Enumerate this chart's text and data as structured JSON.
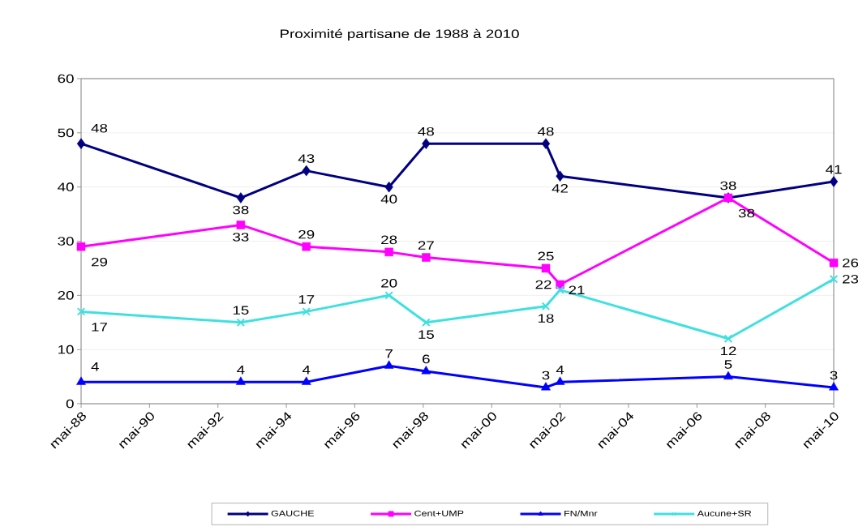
{
  "chart_data": {
    "type": "line",
    "title": "Proximité partisane de 1988 à 2010",
    "x": [
      "1988-05",
      "1993-01",
      "1994-12",
      "1997-05",
      "1998-06",
      "2001-12",
      "2002-05",
      "2007-04",
      "2010-05"
    ],
    "xlim": [
      "1988-05",
      "2010-05"
    ],
    "xticks": [
      {
        "value": "1988-05",
        "label": "mai-88"
      },
      {
        "value": "1990-05",
        "label": "mai-90"
      },
      {
        "value": "1992-05",
        "label": "mai-92"
      },
      {
        "value": "1994-05",
        "label": "mai-94"
      },
      {
        "value": "1996-05",
        "label": "mai-96"
      },
      {
        "value": "1998-05",
        "label": "mai-98"
      },
      {
        "value": "2000-05",
        "label": "mai-00"
      },
      {
        "value": "2002-05",
        "label": "mai-02"
      },
      {
        "value": "2004-05",
        "label": "mai-04"
      },
      {
        "value": "2006-05",
        "label": "mai-06"
      },
      {
        "value": "2008-05",
        "label": "mai-08"
      },
      {
        "value": "2010-05",
        "label": "mai-10"
      }
    ],
    "ylim": [
      0,
      60
    ],
    "yticks": [
      0,
      10,
      20,
      30,
      40,
      50,
      60
    ],
    "series": [
      {
        "name": "GAUCHE",
        "color": "#000080",
        "marker": "diamond",
        "values": [
          48,
          38,
          43,
          40,
          48,
          48,
          42,
          38,
          41
        ]
      },
      {
        "name": "Cent+UMP",
        "color": "#ff00ff",
        "marker": "square",
        "values": [
          29,
          33,
          29,
          28,
          27,
          25,
          22,
          38,
          26
        ]
      },
      {
        "name": "FN/Mnr",
        "color": "#0000ff",
        "marker": "triangle",
        "values": [
          4,
          4,
          4,
          7,
          6,
          3,
          4,
          5,
          3
        ]
      },
      {
        "name": "Aucune+SR",
        "color": "#40e0e0",
        "marker": "cross",
        "values": [
          17,
          15,
          17,
          20,
          15,
          18,
          21,
          12,
          23
        ]
      }
    ],
    "data_labels": true,
    "grid": "y",
    "legend": "bottom"
  }
}
